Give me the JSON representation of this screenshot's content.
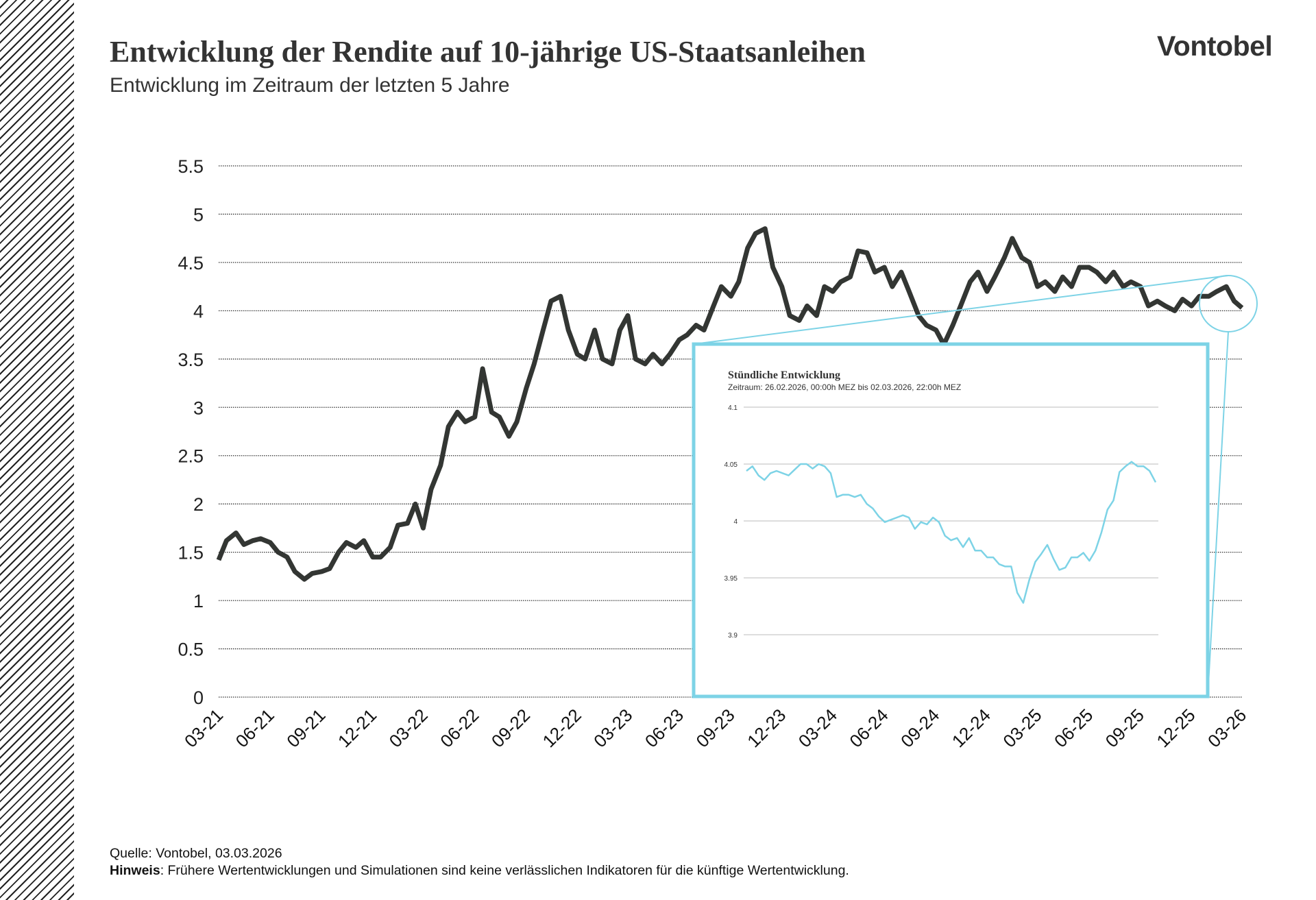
{
  "header": {
    "title": "Entwicklung der Rendite auf 10-jährige US-Staatsanleihen",
    "subtitle": "Entwicklung im Zeitraum der letzten 5 Jahre",
    "logo": "Vontobel"
  },
  "footer": {
    "source": "Quelle: Vontobel, 03.03.2026",
    "note_label": "Hinweis",
    "note_text": ": Frühere Wertentwicklungen und Simulationen sind keine verlässlichen Indikatoren für die künftige Wertentwicklung."
  },
  "colors": {
    "main_line": "#333633",
    "inset_accent": "#7dd3e6",
    "grid": "#333333"
  },
  "chart_data": [
    {
      "type": "line",
      "title": "",
      "xlabel": "",
      "ylabel": "",
      "ylim": [
        0,
        5.5
      ],
      "y_ticks": [
        "0",
        "0.5",
        "1",
        "1.5",
        "2",
        "2.5",
        "3",
        "3.5",
        "4",
        "4.5",
        "5",
        "5.5"
      ],
      "x_tick_labels": [
        "03-21",
        "06-21",
        "09-21",
        "12-21",
        "03-22",
        "06-22",
        "09-22",
        "12-22",
        "03-23",
        "06-23",
        "09-23",
        "12-23",
        "03-24",
        "06-24",
        "09-24",
        "12-24",
        "03-25",
        "06-25",
        "09-25",
        "12-25",
        "03-26"
      ],
      "grid": "horizontal dotted",
      "x": [
        "2021-03-01",
        "2021-03-15",
        "2021-04-01",
        "2021-04-15",
        "2021-05-01",
        "2021-05-15",
        "2021-06-01",
        "2021-06-15",
        "2021-07-01",
        "2021-07-15",
        "2021-08-01",
        "2021-08-15",
        "2021-09-01",
        "2021-09-15",
        "2021-10-01",
        "2021-10-15",
        "2021-11-01",
        "2021-11-15",
        "2021-12-01",
        "2021-12-15",
        "2022-01-01",
        "2022-01-15",
        "2022-02-01",
        "2022-02-15",
        "2022-03-01",
        "2022-03-15",
        "2022-04-01",
        "2022-04-15",
        "2022-05-01",
        "2022-05-15",
        "2022-06-01",
        "2022-06-15",
        "2022-07-01",
        "2022-07-15",
        "2022-08-01",
        "2022-08-15",
        "2022-09-01",
        "2022-09-15",
        "2022-10-01",
        "2022-10-15",
        "2022-11-01",
        "2022-11-15",
        "2022-12-01",
        "2022-12-15",
        "2023-01-01",
        "2023-01-15",
        "2023-02-01",
        "2023-02-15",
        "2023-03-01",
        "2023-03-15",
        "2023-04-01",
        "2023-04-15",
        "2023-05-01",
        "2023-05-15",
        "2023-06-01",
        "2023-06-15",
        "2023-07-01",
        "2023-07-15",
        "2023-08-01",
        "2023-08-15",
        "2023-09-01",
        "2023-09-15",
        "2023-10-01",
        "2023-10-15",
        "2023-11-01",
        "2023-11-15",
        "2023-12-01",
        "2023-12-15",
        "2024-01-01",
        "2024-01-15",
        "2024-02-01",
        "2024-02-15",
        "2024-03-01",
        "2024-03-15",
        "2024-04-01",
        "2024-04-15",
        "2024-05-01",
        "2024-05-15",
        "2024-06-01",
        "2024-06-15",
        "2024-07-01",
        "2024-07-15",
        "2024-08-01",
        "2024-08-15",
        "2024-09-01",
        "2024-09-15",
        "2024-10-01",
        "2024-10-15",
        "2024-11-01",
        "2024-11-15",
        "2024-12-01",
        "2024-12-15",
        "2025-01-01",
        "2025-01-15",
        "2025-02-01",
        "2025-02-15",
        "2025-03-01",
        "2025-03-15",
        "2025-04-01",
        "2025-04-15",
        "2025-05-01",
        "2025-05-15",
        "2025-06-01",
        "2025-06-15",
        "2025-07-01",
        "2025-07-15",
        "2025-08-01",
        "2025-08-15",
        "2025-09-01",
        "2025-09-15",
        "2025-10-01",
        "2025-10-15",
        "2025-11-01",
        "2025-11-15",
        "2025-12-01",
        "2025-12-15",
        "2026-01-01",
        "2026-01-15",
        "2026-02-01",
        "2026-02-15",
        "2026-03-01"
      ],
      "y": [
        1.42,
        1.62,
        1.7,
        1.58,
        1.62,
        1.64,
        1.6,
        1.5,
        1.45,
        1.3,
        1.22,
        1.28,
        1.3,
        1.33,
        1.5,
        1.6,
        1.55,
        1.62,
        1.45,
        1.45,
        1.55,
        1.78,
        1.8,
        2.0,
        1.75,
        2.15,
        2.4,
        2.8,
        2.95,
        2.85,
        2.9,
        3.4,
        2.95,
        2.9,
        2.7,
        2.85,
        3.2,
        3.45,
        3.8,
        4.1,
        4.15,
        3.8,
        3.55,
        3.5,
        3.8,
        3.5,
        3.45,
        3.8,
        3.95,
        3.5,
        3.45,
        3.55,
        3.45,
        3.55,
        3.7,
        3.75,
        3.85,
        3.8,
        4.05,
        4.25,
        4.15,
        4.3,
        4.65,
        4.8,
        4.85,
        4.45,
        4.25,
        3.95,
        3.9,
        4.05,
        3.95,
        4.25,
        4.2,
        4.3,
        4.35,
        4.62,
        4.6,
        4.4,
        4.45,
        4.25,
        4.4,
        4.2,
        3.95,
        3.85,
        3.8,
        3.65,
        3.85,
        4.05,
        4.3,
        4.4,
        4.2,
        4.35,
        4.55,
        4.75,
        4.55,
        4.5,
        4.25,
        4.3,
        4.2,
        4.35,
        4.25,
        4.45,
        4.45,
        4.4,
        4.3,
        4.4,
        4.25,
        4.3,
        4.25,
        4.05,
        4.1,
        4.05,
        4.0,
        4.12,
        4.05,
        4.15,
        4.15,
        4.2,
        4.25,
        4.1,
        4.03
      ]
    },
    {
      "type": "line",
      "title": "Stündliche Entwicklung",
      "subtitle": "Zeitraum: 26.02.2026, 00:00h MEZ bis 02.03.2026, 22:00h MEZ",
      "ylim": [
        3.9,
        4.1
      ],
      "y_ticks": [
        "3.9",
        "3.95",
        "4",
        "4.05",
        "4.1"
      ],
      "grid": "horizontal",
      "values": [
        4.044,
        4.048,
        4.04,
        4.036,
        4.042,
        4.044,
        4.042,
        4.04,
        4.045,
        4.05,
        4.05,
        4.046,
        4.05,
        4.048,
        4.042,
        4.021,
        4.023,
        4.023,
        4.021,
        4.023,
        4.015,
        4.011,
        4.004,
        3.999,
        4.001,
        4.003,
        4.005,
        4.003,
        3.993,
        3.999,
        3.997,
        4.003,
        3.999,
        3.987,
        3.983,
        3.985,
        3.977,
        3.985,
        3.974,
        3.974,
        3.968,
        3.968,
        3.962,
        3.96,
        3.96,
        3.937,
        3.928,
        3.948,
        3.964,
        3.971,
        3.979,
        3.967,
        3.957,
        3.959,
        3.968,
        3.968,
        3.972,
        3.965,
        3.974,
        3.99,
        4.01,
        4.018,
        4.043,
        4.048,
        4.052,
        4.048,
        4.048,
        4.044,
        4.034
      ]
    }
  ]
}
